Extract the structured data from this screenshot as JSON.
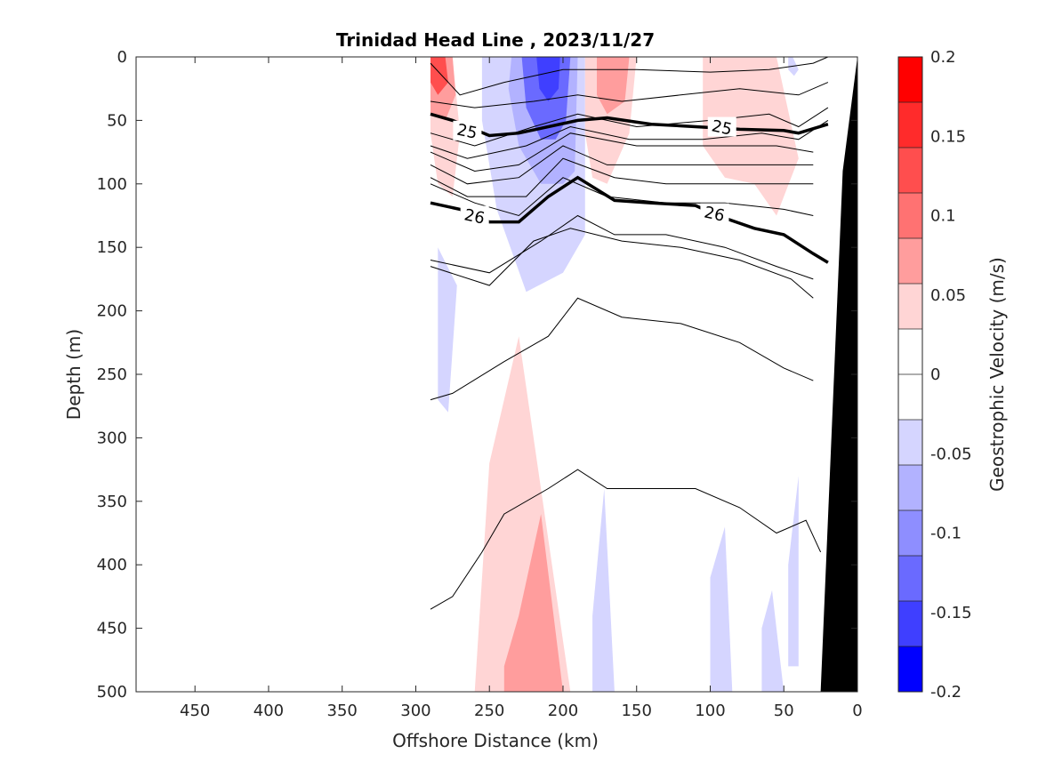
{
  "chart_data": {
    "type": "contour",
    "title": "Trinidad Head Line , 2023/11/27",
    "xlabel": "Offshore Distance (km)",
    "ylabel": "Depth (m)",
    "xlim": [
      490,
      0
    ],
    "ylim": [
      0,
      500
    ],
    "x_reversed": true,
    "y_reversed": true,
    "x_ticks": [
      "450",
      "400",
      "350",
      "300",
      "250",
      "200",
      "150",
      "100",
      "50",
      "0"
    ],
    "y_ticks": [
      "0",
      "50",
      "100",
      "150",
      "200",
      "250",
      "300",
      "350",
      "400",
      "450",
      "500"
    ],
    "colorbar": {
      "label": "Geostrophic Velocity (m/s)",
      "range": [
        -0.2,
        0.2
      ],
      "tick_labels": [
        "0.2",
        "0.15",
        "0.1",
        "0.05",
        "0",
        "-0.05",
        "-0.1",
        "-0.15",
        "-0.2"
      ],
      "colors": [
        "#ff0000",
        "#ff2b2b",
        "#ff4e4e",
        "#ff7272",
        "#ff9d9d",
        "#ffd5d5",
        "#ffffff",
        "#ffffff",
        "#d5d5ff",
        "#b2b2ff",
        "#8e8eff",
        "#6a6aff",
        "#3f3fff",
        "#0000ff"
      ]
    },
    "velocity_regions": [
      {
        "x": [
          290,
          275,
          270,
          275,
          285,
          290
        ],
        "y": [
          0,
          0,
          60,
          110,
          100,
          60
        ],
        "value": 0.05
      },
      {
        "x": [
          290,
          275,
          273,
          280,
          290
        ],
        "y": [
          0,
          0,
          30,
          50,
          45
        ],
        "value": 0.1
      },
      {
        "x": [
          290,
          280,
          278,
          285,
          290
        ],
        "y": [
          0,
          0,
          20,
          30,
          20
        ],
        "value": 0.15
      },
      {
        "x": [
          255,
          185,
          185,
          200,
          225,
          245,
          255
        ],
        "y": [
          0,
          0,
          140,
          170,
          185,
          120,
          50
        ],
        "value": -0.05
      },
      {
        "x": [
          235,
          190,
          192,
          200,
          215,
          230,
          237
        ],
        "y": [
          0,
          0,
          90,
          100,
          100,
          70,
          25
        ],
        "value": -0.1
      },
      {
        "x": [
          228,
          195,
          198,
          205,
          215,
          225
        ],
        "y": [
          0,
          0,
          50,
          65,
          65,
          40
        ],
        "value": -0.15
      },
      {
        "x": [
          218,
          202,
          203,
          210,
          216
        ],
        "y": [
          0,
          0,
          25,
          35,
          25
        ],
        "value": -0.2
      },
      {
        "x": [
          185,
          150,
          155,
          170,
          180,
          185
        ],
        "y": [
          0,
          0,
          60,
          100,
          95,
          60
        ],
        "value": 0.05
      },
      {
        "x": [
          177,
          155,
          158,
          170,
          177
        ],
        "y": [
          0,
          0,
          35,
          45,
          30
        ],
        "value": 0.1
      },
      {
        "x": [
          105,
          55,
          40,
          55,
          70,
          90,
          105
        ],
        "y": [
          0,
          0,
          80,
          125,
          100,
          95,
          70
        ],
        "value": 0.05
      },
      {
        "x": [
          47,
          44,
          40,
          43,
          47
        ],
        "y": [
          0,
          0,
          10,
          15,
          10
        ],
        "value": -0.05
      },
      {
        "x": [
          285,
          272,
          278,
          285
        ],
        "y": [
          150,
          180,
          280,
          270
        ],
        "value": -0.05
      },
      {
        "x": [
          260,
          210,
          195,
          230,
          250,
          260
        ],
        "y": [
          500,
          500,
          500,
          220,
          320,
          500
        ],
        "value": 0.05
      },
      {
        "x": [
          240,
          200,
          215,
          230,
          240
        ],
        "y": [
          500,
          500,
          360,
          440,
          480
        ],
        "value": 0.1
      },
      {
        "x": [
          180,
          165,
          172,
          180
        ],
        "y": [
          500,
          500,
          340,
          440
        ],
        "value": -0.05
      },
      {
        "x": [
          100,
          85,
          90,
          100
        ],
        "y": [
          500,
          500,
          370,
          410
        ],
        "value": -0.05
      },
      {
        "x": [
          65,
          50,
          58,
          65
        ],
        "y": [
          500,
          500,
          420,
          450
        ],
        "value": -0.05
      },
      {
        "x": [
          47,
          40,
          40,
          47
        ],
        "y": [
          480,
          480,
          330,
          400
        ],
        "value": -0.05
      }
    ],
    "thin_isolines": [
      {
        "x": [
          290,
          270,
          240,
          200,
          150,
          100,
          60,
          30,
          20
        ],
        "y": [
          5,
          30,
          20,
          10,
          10,
          12,
          10,
          5,
          0
        ]
      },
      {
        "x": [
          290,
          260,
          220,
          190,
          160,
          120,
          80,
          40,
          20
        ],
        "y": [
          35,
          40,
          35,
          30,
          35,
          30,
          25,
          30,
          20
        ]
      },
      {
        "x": [
          290,
          260,
          220,
          190,
          150,
          100,
          60,
          40,
          20
        ],
        "y": [
          60,
          70,
          55,
          45,
          55,
          50,
          45,
          55,
          40
        ]
      },
      {
        "x": [
          290,
          265,
          225,
          195,
          155,
          105,
          65,
          40,
          20
        ],
        "y": [
          70,
          80,
          70,
          55,
          65,
          65,
          60,
          65,
          50
        ]
      },
      {
        "x": [
          290,
          260,
          230,
          195,
          150,
          100,
          55,
          30
        ],
        "y": [
          75,
          90,
          85,
          60,
          70,
          70,
          70,
          75
        ]
      },
      {
        "x": [
          290,
          265,
          230,
          200,
          170,
          130,
          90,
          50,
          30
        ],
        "y": [
          85,
          100,
          95,
          70,
          85,
          85,
          85,
          85,
          85
        ]
      },
      {
        "x": [
          290,
          265,
          225,
          200,
          165,
          130,
          90,
          45,
          30
        ],
        "y": [
          95,
          110,
          110,
          80,
          95,
          100,
          100,
          100,
          100
        ]
      },
      {
        "x": [
          290,
          260,
          230,
          200,
          170,
          130,
          90,
          50,
          30
        ],
        "y": [
          100,
          115,
          125,
          95,
          110,
          115,
          115,
          120,
          125
        ]
      },
      {
        "x": [
          290,
          250,
          215,
          190,
          165,
          130,
          90,
          55,
          30
        ],
        "y": [
          160,
          170,
          145,
          125,
          140,
          140,
          150,
          165,
          175
        ]
      },
      {
        "x": [
          290,
          250,
          220,
          195,
          160,
          120,
          80,
          45,
          30
        ],
        "y": [
          165,
          180,
          145,
          135,
          145,
          150,
          160,
          175,
          190
        ]
      },
      {
        "x": [
          290,
          275,
          240,
          210,
          190,
          160,
          120,
          80,
          50,
          30
        ],
        "y": [
          270,
          265,
          240,
          220,
          190,
          205,
          210,
          225,
          245,
          255
        ]
      },
      {
        "x": [
          290,
          275,
          255,
          240,
          210,
          190,
          170,
          140,
          110,
          80,
          55,
          35,
          25
        ],
        "y": [
          435,
          425,
          390,
          360,
          340,
          325,
          340,
          340,
          340,
          355,
          375,
          365,
          390
        ]
      }
    ],
    "labeled_isolines": [
      {
        "label": "25",
        "x": [
          290,
          275,
          250,
          230,
          190,
          170,
          140,
          110,
          80,
          50,
          40,
          20
        ],
        "y": [
          45,
          50,
          62,
          60,
          50,
          48,
          53,
          55,
          57,
          58,
          60,
          53
        ],
        "label_x": 265,
        "label_y": 58
      },
      {
        "label": "26",
        "x": [
          290,
          270,
          250,
          230,
          210,
          190,
          165,
          140,
          110,
          95,
          70,
          50,
          30,
          20
        ],
        "y": [
          115,
          120,
          130,
          130,
          110,
          95,
          113,
          115,
          117,
          125,
          135,
          140,
          155,
          162
        ],
        "label_x": 260,
        "label_y": 125,
        "label2_x": 97,
        "label2_y": 123
      }
    ],
    "bottom_topography": {
      "x": [
        25,
        25,
        10,
        0,
        0
      ],
      "y": [
        500,
        500,
        90,
        0,
        500
      ]
    }
  }
}
